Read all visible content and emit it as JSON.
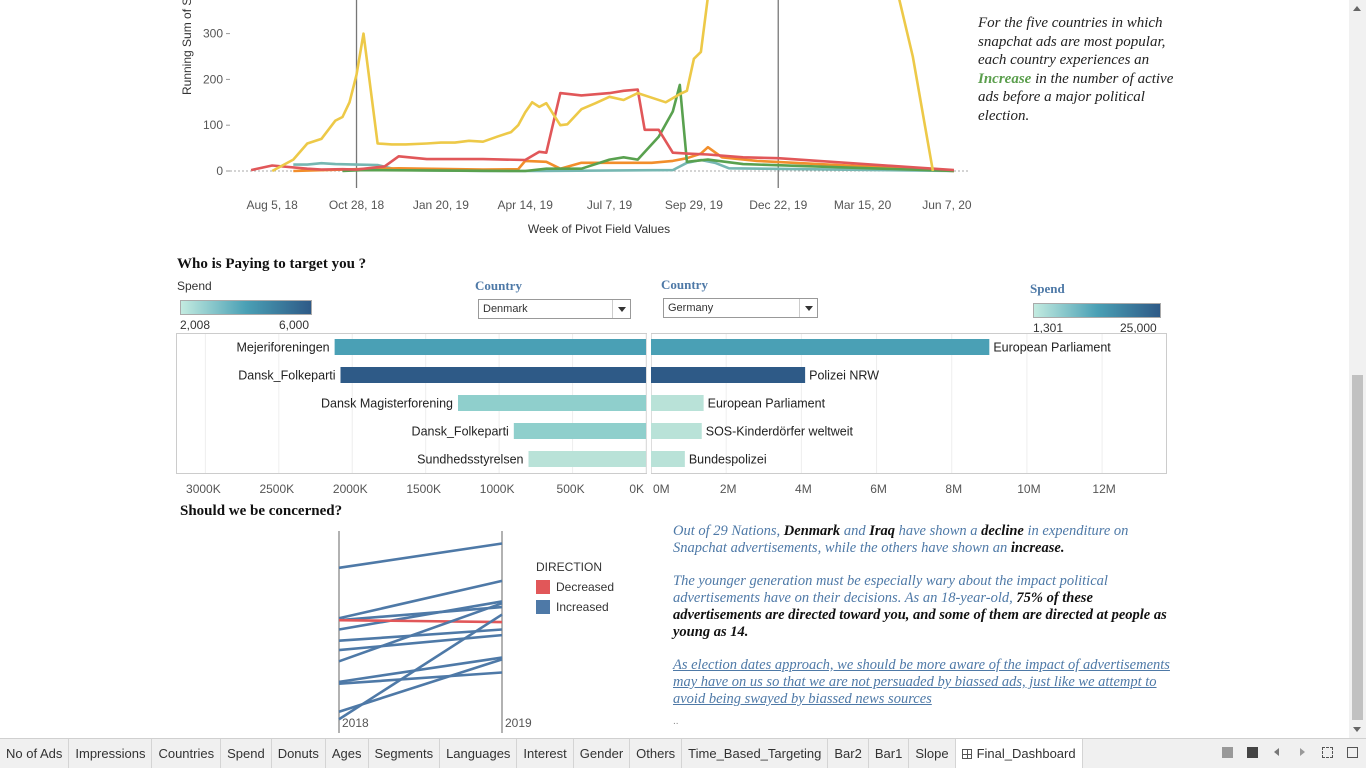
{
  "line_chart": {
    "y_axis_label": "Running Sum of S",
    "x_axis_label": "Week of Pivot Field Values",
    "y_ticks": [
      "300",
      "200",
      "100",
      "0"
    ],
    "x_ticks": [
      "Aug 5, 18",
      "Oct 28, 18",
      "Jan 20, 19",
      "Apr 14, 19",
      "Jul 7, 19",
      "Sep 29, 19",
      "Dec 22, 19",
      "Mar 15, 20",
      "Jun 7, 20"
    ]
  },
  "annotation_top": {
    "pre": "For the five countries in which snapchat ads are most popular, each country experiences an ",
    "highlight": "Increase",
    "post": " in the number of active ads before a major political election."
  },
  "who_section": {
    "title": "Who is Paying to target you ?",
    "left_legend_title": "Spend",
    "left_legend_min": "2,008",
    "left_legend_max": "6,000",
    "right_legend_title": "Spend",
    "right_legend_min": "1,301",
    "right_legend_max": "25,000",
    "left_country_label": "Country",
    "left_country_value": "Denmark",
    "right_country_label": "Country",
    "right_country_value": "Germany"
  },
  "concern_section": {
    "title": "Should we be concerned?",
    "legend_title": "DIRECTION",
    "legend_items": [
      {
        "label": "Decreased",
        "color": "#e15759"
      },
      {
        "label": "Increased",
        "color": "#4e79a7"
      }
    ],
    "year_left": "2018",
    "year_right": "2019"
  },
  "annotation_bottom": {
    "p1_a": "Out of 29 Nations, ",
    "p1_b": "Denmark",
    "p1_c": " and ",
    "p1_d": "Iraq",
    "p1_e": " have shown a ",
    "p1_f": "decline",
    "p1_g": " in expenditure on Snapchat advertisements, while the others have shown an ",
    "p1_h": "increase.",
    "p2_a": "The younger generation must be especially wary about the impact political advertisements have on their decisions. As an 18-year-old, ",
    "p2_b": "75% of these advertisements are directed toward you, and some of them are directed at people as young as 14.",
    "p3": "As election dates approach, we should be more aware of the impact of advertisements may have on us so that we are not persuaded by biassed ads, just like we attempt to avoid being swayed by biassed news sources",
    "dots": ".."
  },
  "tabs": [
    "No of Ads",
    "Impressions",
    "Countries",
    "Spend",
    "Donuts",
    "Ages",
    "Segments",
    "Languages",
    "Interest",
    "Gender",
    "Others",
    "Time_Based_Targeting",
    "Bar2",
    "Bar1",
    "Slope",
    "Final_Dashboard"
  ],
  "colors": {
    "yellow": "#edc948",
    "red": "#e15759",
    "green": "#59a14f",
    "orange": "#f28e2b",
    "teal": "#76b7b2",
    "dark_blue": "#2e5a87",
    "mid_blue": "#4aa0b5",
    "light_teal": "#b9e2d8"
  },
  "chart_data": [
    {
      "type": "line",
      "xlabel": "Week of Pivot Field Values",
      "ylabel": "Running Sum of S",
      "ylim": [
        0,
        380
      ],
      "x_ticks": [
        "Aug 5, 18",
        "Oct 28, 18",
        "Jan 20, 19",
        "Apr 14, 19",
        "Jul 7, 19",
        "Sep 29, 19",
        "Dec 22, 19",
        "Mar 15, 20",
        "Jun 7, 20"
      ],
      "reference_lines_x": [
        "Oct 28, 18",
        "Dec 22, 19"
      ],
      "series": [
        {
          "color": "#edc948",
          "points": [
            [
              "2018-08-05",
              0
            ],
            [
              "2018-08-26",
              25
            ],
            [
              "2018-09-09",
              60
            ],
            [
              "2018-09-23",
              70
            ],
            [
              "2018-10-07",
              110
            ],
            [
              "2018-10-14",
              118
            ],
            [
              "2018-10-21",
              150
            ],
            [
              "2018-10-28",
              210
            ],
            [
              "2018-11-04",
              300
            ],
            [
              "2018-11-18",
              60
            ],
            [
              "2018-12-02",
              58
            ],
            [
              "2018-12-16",
              58
            ],
            [
              "2019-01-06",
              60
            ],
            [
              "2019-01-20",
              62
            ],
            [
              "2019-02-03",
              62
            ],
            [
              "2019-02-17",
              66
            ],
            [
              "2019-03-03",
              64
            ],
            [
              "2019-03-17",
              75
            ],
            [
              "2019-03-31",
              85
            ],
            [
              "2019-04-07",
              100
            ],
            [
              "2019-04-14",
              128
            ],
            [
              "2019-04-21",
              150
            ],
            [
              "2019-04-28",
              140
            ],
            [
              "2019-05-05",
              148
            ],
            [
              "2019-05-19",
              100
            ],
            [
              "2019-05-26",
              102
            ],
            [
              "2019-06-09",
              135
            ],
            [
              "2019-06-23",
              148
            ],
            [
              "2019-07-07",
              162
            ],
            [
              "2019-07-21",
              155
            ],
            [
              "2019-08-04",
              170
            ],
            [
              "2019-08-18",
              160
            ],
            [
              "2019-09-01",
              150
            ],
            [
              "2019-09-15",
              168
            ],
            [
              "2019-09-22",
              175
            ],
            [
              "2019-09-29",
              245
            ],
            [
              "2019-10-06",
              260
            ],
            [
              "2019-10-13",
              380
            ],
            [
              "2020-04-20",
              380
            ],
            [
              "2020-05-04",
              250
            ],
            [
              "2020-05-24",
              0
            ]
          ]
        },
        {
          "color": "#e15759",
          "points": [
            [
              "2018-07-15",
              2
            ],
            [
              "2018-08-05",
              12
            ],
            [
              "2018-09-09",
              5
            ],
            [
              "2018-09-23",
              3
            ],
            [
              "2018-10-14",
              4
            ],
            [
              "2018-10-28",
              3
            ],
            [
              "2018-11-25",
              10
            ],
            [
              "2018-12-09",
              32
            ],
            [
              "2019-01-06",
              26
            ],
            [
              "2019-02-03",
              26
            ],
            [
              "2019-03-03",
              26
            ],
            [
              "2019-04-14",
              24
            ],
            [
              "2019-04-28",
              42
            ],
            [
              "2019-05-05",
              40
            ],
            [
              "2019-05-19",
              170
            ],
            [
              "2019-06-09",
              165
            ],
            [
              "2019-07-07",
              170
            ],
            [
              "2019-07-21",
              175
            ],
            [
              "2019-08-04",
              178
            ],
            [
              "2019-08-11",
              90
            ],
            [
              "2019-08-25",
              90
            ],
            [
              "2019-09-08",
              40
            ],
            [
              "2019-09-22",
              38
            ],
            [
              "2019-10-13",
              36
            ],
            [
              "2019-11-17",
              30
            ],
            [
              "2019-12-22",
              28
            ],
            [
              "2020-06-14",
              2
            ]
          ]
        },
        {
          "color": "#59a14f",
          "points": [
            [
              "2018-10-14",
              0
            ],
            [
              "2018-11-04",
              2
            ],
            [
              "2019-04-14",
              0
            ],
            [
              "2019-05-05",
              5
            ],
            [
              "2019-06-09",
              5
            ],
            [
              "2019-07-07",
              25
            ],
            [
              "2019-07-21",
              30
            ],
            [
              "2019-08-04",
              25
            ],
            [
              "2019-08-25",
              75
            ],
            [
              "2019-09-08",
              130
            ],
            [
              "2019-09-15",
              188
            ],
            [
              "2019-09-22",
              20
            ],
            [
              "2019-10-13",
              25
            ],
            [
              "2019-11-17",
              15
            ],
            [
              "2020-06-14",
              0
            ]
          ]
        },
        {
          "color": "#f28e2b",
          "points": [
            [
              "2018-08-26",
              0
            ],
            [
              "2018-10-28",
              4
            ],
            [
              "2018-12-09",
              6
            ],
            [
              "2019-03-03",
              3
            ],
            [
              "2019-04-07",
              4
            ],
            [
              "2019-04-14",
              22
            ],
            [
              "2019-05-05",
              20
            ],
            [
              "2019-05-19",
              5
            ],
            [
              "2019-06-09",
              18
            ],
            [
              "2019-07-21",
              18
            ],
            [
              "2019-08-18",
              18
            ],
            [
              "2019-09-08",
              22
            ],
            [
              "2019-09-22",
              28
            ],
            [
              "2019-10-06",
              38
            ],
            [
              "2019-10-13",
              52
            ],
            [
              "2019-10-27",
              30
            ],
            [
              "2019-12-01",
              22
            ],
            [
              "2020-06-14",
              0
            ]
          ]
        },
        {
          "color": "#76b7b2",
          "points": [
            [
              "2018-08-26",
              14
            ],
            [
              "2018-09-09",
              14
            ],
            [
              "2018-09-23",
              17
            ],
            [
              "2018-10-07",
              15
            ],
            [
              "2018-10-28",
              14
            ],
            [
              "2018-11-18",
              13
            ],
            [
              "2018-12-09",
              2
            ],
            [
              "2019-03-03",
              0
            ],
            [
              "2019-04-28",
              0
            ],
            [
              "2019-09-08",
              2
            ],
            [
              "2019-09-22",
              18
            ],
            [
              "2019-10-06",
              24
            ],
            [
              "2019-10-20",
              18
            ],
            [
              "2019-11-03",
              6
            ],
            [
              "2020-06-14",
              0
            ]
          ]
        }
      ]
    },
    {
      "type": "bar",
      "orientation": "horizontal-reversed",
      "country": "Denmark",
      "categories": [
        "Mejeriforeningen",
        "Dansk_Folkeparti",
        "Dansk Magisterforening",
        "Dansk_Folkeparti",
        "Sundhedsstyrelsen"
      ],
      "values": [
        2120000,
        2080000,
        1280000,
        900000,
        800000
      ],
      "colors": [
        "#4aa0b5",
        "#2e5a87",
        "#8fcfcc",
        "#8fcfcc",
        "#b9e2d8"
      ],
      "x_ticks": [
        "3000K",
        "2500K",
        "2000K",
        "1500K",
        "1000K",
        "500K",
        "0K"
      ],
      "xlim": [
        3200000,
        0
      ],
      "color_legend": {
        "title": "Spend",
        "min": "2,008",
        "max": "6,000"
      }
    },
    {
      "type": "bar",
      "orientation": "horizontal",
      "country": "Germany",
      "categories": [
        "European Parliament",
        "Polizei NRW",
        "European Parliament",
        "SOS-Kinderdörfer weltweit",
        "Bundespolizei"
      ],
      "values": [
        9000000,
        4100000,
        1400000,
        1350000,
        900000
      ],
      "colors": [
        "#4aa0b5",
        "#2e5a87",
        "#b9e2d8",
        "#b9e2d8",
        "#b9e2d8"
      ],
      "x_ticks": [
        "0M",
        "2M",
        "4M",
        "6M",
        "8M",
        "10M",
        "12M"
      ],
      "xlim": [
        0,
        13700000
      ],
      "color_legend": {
        "title": "Spend",
        "min": "1,301",
        "max": "25,000"
      }
    },
    {
      "type": "line",
      "subtype": "slope",
      "x_ticks": [
        "2018",
        "2019"
      ],
      "legend": {
        "title": "DIRECTION",
        "entries": [
          "Decreased",
          "Increased"
        ]
      },
      "series": [
        {
          "direction": "Increased",
          "values": [
            0.83,
            0.96
          ]
        },
        {
          "direction": "Increased",
          "values": [
            0.56,
            0.76
          ]
        },
        {
          "direction": "Increased",
          "values": [
            0.55,
            0.62
          ]
        },
        {
          "direction": "Increased",
          "values": [
            0.5,
            0.65
          ]
        },
        {
          "direction": "Decreased",
          "values": [
            0.55,
            0.54
          ]
        },
        {
          "direction": "Increased",
          "values": [
            0.44,
            0.5
          ]
        },
        {
          "direction": "Increased",
          "values": [
            0.39,
            0.47
          ]
        },
        {
          "direction": "Increased",
          "values": [
            0.33,
            0.64
          ]
        },
        {
          "direction": "Increased",
          "values": [
            0.22,
            0.35
          ]
        },
        {
          "direction": "Increased",
          "values": [
            0.21,
            0.27
          ]
        },
        {
          "direction": "Increased",
          "values": [
            0.06,
            0.34
          ]
        },
        {
          "direction": "Increased",
          "values": [
            0.02,
            0.58
          ]
        }
      ]
    }
  ]
}
